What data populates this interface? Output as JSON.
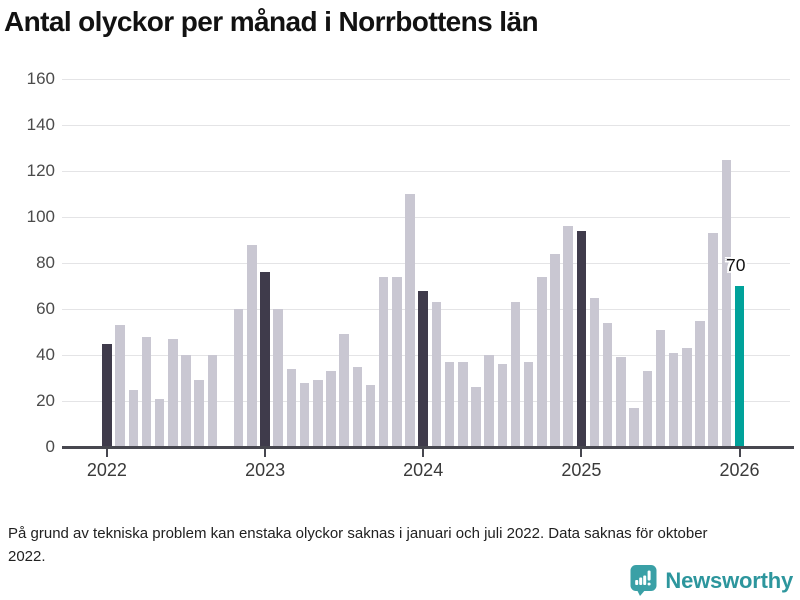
{
  "title": "Antal olyckor per månad i Norrbottens län",
  "footnote": "På grund av tekniska problem kan enstaka olyckor saknas i januari och juli 2022. Data saknas för oktober 2022.",
  "logo": {
    "text": "Newsworthy",
    "icon": "newsworthy-speech-bubble-bar-chart-icon",
    "color": "#3aa0a6",
    "text_color": "#2d969d"
  },
  "colors": {
    "bar_default": "#c9c7d2",
    "bar_january_highlight": "#3f3b4b",
    "bar_latest": "#00a29a",
    "axis": "#47474f",
    "gridline": "#e4e4e6"
  },
  "chart_data": {
    "type": "bar",
    "title": "Antal olyckor per månad i Norrbottens län",
    "x_unit": "month",
    "ylim": [
      0,
      160
    ],
    "yticks": [
      0,
      20,
      40,
      60,
      80,
      100,
      120,
      140,
      160
    ],
    "grid": "horizontal",
    "legend": "none",
    "x_ticks": [
      {
        "label": "2022",
        "month_index": 0
      },
      {
        "label": "2023",
        "month_index": 12
      },
      {
        "label": "2024",
        "month_index": 24
      },
      {
        "label": "2025",
        "month_index": 36
      },
      {
        "label": "2026",
        "month_index": 48
      }
    ],
    "annotation": {
      "text": "70",
      "month_index": 48
    },
    "series": [
      {
        "name": "Antal olyckor",
        "points": [
          {
            "m": "2022-01",
            "v": 45,
            "style": "january-highlight"
          },
          {
            "m": "2022-02",
            "v": 53,
            "style": "default"
          },
          {
            "m": "2022-03",
            "v": 25,
            "style": "default"
          },
          {
            "m": "2022-04",
            "v": 48,
            "style": "default"
          },
          {
            "m": "2022-05",
            "v": 21,
            "style": "default"
          },
          {
            "m": "2022-06",
            "v": 47,
            "style": "default"
          },
          {
            "m": "2022-07",
            "v": 40,
            "style": "default"
          },
          {
            "m": "2022-08",
            "v": 29,
            "style": "default"
          },
          {
            "m": "2022-09",
            "v": 40,
            "style": "default"
          },
          {
            "m": "2022-10",
            "v": null,
            "style": "missing"
          },
          {
            "m": "2022-11",
            "v": 60,
            "style": "default"
          },
          {
            "m": "2022-12",
            "v": 88,
            "style": "default"
          },
          {
            "m": "2023-01",
            "v": 76,
            "style": "january-highlight"
          },
          {
            "m": "2023-02",
            "v": 60,
            "style": "default"
          },
          {
            "m": "2023-03",
            "v": 34,
            "style": "default"
          },
          {
            "m": "2023-04",
            "v": 28,
            "style": "default"
          },
          {
            "m": "2023-05",
            "v": 29,
            "style": "default"
          },
          {
            "m": "2023-06",
            "v": 33,
            "style": "default"
          },
          {
            "m": "2023-07",
            "v": 49,
            "style": "default"
          },
          {
            "m": "2023-08",
            "v": 35,
            "style": "default"
          },
          {
            "m": "2023-09",
            "v": 27,
            "style": "default"
          },
          {
            "m": "2023-10",
            "v": 74,
            "style": "default"
          },
          {
            "m": "2023-11",
            "v": 74,
            "style": "default"
          },
          {
            "m": "2023-12",
            "v": 110,
            "style": "default"
          },
          {
            "m": "2024-01",
            "v": 68,
            "style": "january-highlight"
          },
          {
            "m": "2024-02",
            "v": 63,
            "style": "default"
          },
          {
            "m": "2024-03",
            "v": 37,
            "style": "default"
          },
          {
            "m": "2024-04",
            "v": 37,
            "style": "default"
          },
          {
            "m": "2024-05",
            "v": 26,
            "style": "default"
          },
          {
            "m": "2024-06",
            "v": 40,
            "style": "default"
          },
          {
            "m": "2024-07",
            "v": 36,
            "style": "default"
          },
          {
            "m": "2024-08",
            "v": 63,
            "style": "default"
          },
          {
            "m": "2024-09",
            "v": 37,
            "style": "default"
          },
          {
            "m": "2024-10",
            "v": 74,
            "style": "default"
          },
          {
            "m": "2024-11",
            "v": 84,
            "style": "default"
          },
          {
            "m": "2024-12",
            "v": 96,
            "style": "default"
          },
          {
            "m": "2025-01",
            "v": 94,
            "style": "january-highlight"
          },
          {
            "m": "2025-02",
            "v": 65,
            "style": "default"
          },
          {
            "m": "2025-03",
            "v": 54,
            "style": "default"
          },
          {
            "m": "2025-04",
            "v": 39,
            "style": "default"
          },
          {
            "m": "2025-05",
            "v": 17,
            "style": "default"
          },
          {
            "m": "2025-06",
            "v": 33,
            "style": "default"
          },
          {
            "m": "2025-07",
            "v": 51,
            "style": "default"
          },
          {
            "m": "2025-08",
            "v": 41,
            "style": "default"
          },
          {
            "m": "2025-09",
            "v": 43,
            "style": "default"
          },
          {
            "m": "2025-10",
            "v": 55,
            "style": "default"
          },
          {
            "m": "2025-11",
            "v": 93,
            "style": "default"
          },
          {
            "m": "2025-12",
            "v": 125,
            "style": "default"
          },
          {
            "m": "2026-01",
            "v": 70,
            "style": "latest"
          }
        ]
      }
    ]
  }
}
